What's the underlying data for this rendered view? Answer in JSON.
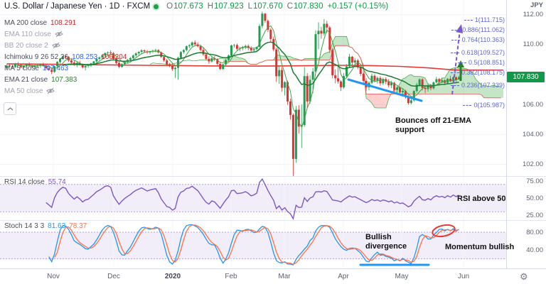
{
  "colors": {
    "up": "#1e9e4e",
    "down": "#e03131",
    "cloud_up": "rgba(76,175,80,0.32)",
    "cloud_down": "rgba(239,83,80,0.28)",
    "ma200": "#e53935",
    "ema21": "#1b7d33",
    "ma5": "#43a047",
    "span_a": "#4caf50",
    "span_b": "#ef5350",
    "rsi": "#7e57c2",
    "band_fill": "rgba(126,87,194,0.10)",
    "band_edge": "#b39ddb",
    "stoch_k": "#2196f3",
    "stoch_d": "#ff7043",
    "badge_bg": "#0f9948",
    "fib": "#5f67ce",
    "trendline": "#2196f3",
    "arrow_green": "#2e7d32",
    "arrow_purple": "#7e57c2",
    "ellipse_red": "#e53935"
  },
  "header": {
    "title": "U.S. Dollar / Japanese Yen · 1D · FXCM",
    "ohlc": {
      "o_label": "O",
      "o": "107.673",
      "h_label": "H",
      "h": "107.923",
      "l_label": "L",
      "l": "107.670",
      "c_label": "C",
      "c": "107.830",
      "change": "+0.157 (+0.15%)"
    }
  },
  "indicators": [
    {
      "label": "MA 200 close",
      "value": "108.291"
    },
    {
      "label": "EMA 110 close",
      "hidden": true
    },
    {
      "label": "BB 20 close 2",
      "hidden": true
    },
    {
      "label": "Ichimoku 9 26 52 26",
      "values": [
        {
          "text": "108.253"
        },
        {
          "text": "106.204"
        }
      ]
    },
    {
      "label": "MA 5 close",
      "value": "107.463"
    },
    {
      "label": "EMA 21 close",
      "value": "107.383"
    },
    {
      "label": "MA 50 close",
      "hidden": true
    }
  ],
  "rsi_legend": {
    "label": "RSI 14 close",
    "value": "55.74"
  },
  "stoch_legend": {
    "label": "Stoch 14 3 3",
    "k": "81.63",
    "d": "78.37"
  },
  "price_axis": {
    "unit": "JPY",
    "ticks": [
      "112.00",
      "110.00",
      "108.00",
      "106.00",
      "104.00",
      "102.00"
    ],
    "last": "107.830"
  },
  "rsi_axis": [
    "75.00",
    "50.00",
    "25.00"
  ],
  "stoch_axis": [
    "80.00",
    "40.00"
  ],
  "time_axis": [
    "Nov",
    "Dec",
    "2020",
    "Feb",
    "Mar",
    "Apr",
    "May",
    "Jun"
  ],
  "fib_levels": [
    {
      "label": "1(111.715)",
      "value": 111.715
    },
    {
      "label": "0.886(111.062)",
      "value": 111.062
    },
    {
      "label": "0.764(110.363)",
      "value": 110.363
    },
    {
      "label": "0.618(109.527)",
      "value": 109.527
    },
    {
      "label": "0.5(108.851)",
      "value": 108.851
    },
    {
      "label": "0.382(108.175)",
      "value": 108.175
    },
    {
      "label": "0.236(107.339)",
      "value": 107.339
    },
    {
      "label": "0(105.987)",
      "value": 105.987
    }
  ],
  "annotations": {
    "price_note": "Bounces off 21-EMA support",
    "rsi_note": "RSI above 50",
    "stoch_note1": "Bullish divergence",
    "stoch_note2": "Momentum bullish"
  },
  "chart_data": {
    "type": "candlestick",
    "symbol": "USD/JPY",
    "interval": "1D",
    "price_ylim": [
      101.4,
      112.8
    ],
    "rsi_band": [
      30,
      70
    ],
    "stoch_band": [
      20,
      80
    ],
    "candles": [
      [
        108.45,
        108.68,
        108.35,
        108.6
      ],
      [
        108.6,
        108.72,
        108.48,
        108.55
      ],
      [
        108.55,
        108.66,
        108.4,
        108.5
      ],
      [
        108.5,
        108.78,
        108.44,
        108.72
      ],
      [
        108.72,
        108.85,
        108.6,
        108.66
      ],
      [
        108.66,
        108.7,
        108.42,
        108.48
      ],
      [
        108.48,
        108.62,
        108.38,
        108.58
      ],
      [
        108.58,
        108.75,
        108.5,
        108.7
      ],
      [
        108.7,
        108.82,
        108.55,
        108.62
      ],
      [
        108.62,
        108.7,
        108.44,
        108.52
      ],
      [
        108.52,
        108.64,
        108.4,
        108.6
      ],
      [
        108.6,
        108.73,
        108.52,
        108.6
      ],
      [
        108.6,
        108.75,
        108.45,
        108.68
      ],
      [
        108.68,
        108.8,
        108.55,
        108.61
      ],
      [
        108.61,
        108.74,
        108.36,
        108.42
      ],
      [
        108.42,
        108.55,
        108.25,
        108.31
      ],
      [
        108.31,
        108.45,
        108.03,
        108.18
      ],
      [
        108.18,
        108.6,
        108.12,
        108.56
      ],
      [
        108.56,
        108.9,
        108.47,
        108.85
      ],
      [
        108.85,
        109.12,
        108.75,
        109.06
      ],
      [
        109.06,
        109.28,
        108.98,
        109.23
      ],
      [
        109.23,
        109.3,
        109.05,
        109.18
      ],
      [
        109.18,
        109.25,
        108.85,
        108.95
      ],
      [
        108.95,
        109.1,
        108.7,
        108.8
      ],
      [
        108.8,
        108.95,
        108.58,
        108.65
      ],
      [
        108.65,
        108.85,
        108.5,
        108.78
      ],
      [
        108.78,
        108.92,
        108.6,
        108.66
      ],
      [
        108.66,
        108.75,
        108.4,
        108.48
      ],
      [
        108.48,
        108.65,
        108.28,
        108.58
      ],
      [
        108.58,
        108.72,
        108.45,
        108.62
      ],
      [
        108.62,
        108.8,
        108.5,
        108.75
      ],
      [
        108.75,
        108.92,
        108.65,
        108.88
      ],
      [
        108.88,
        109.1,
        108.78,
        109.05
      ],
      [
        109.05,
        109.21,
        108.92,
        109.15
      ],
      [
        109.15,
        109.35,
        109.02,
        109.28
      ],
      [
        109.28,
        109.48,
        109.18,
        109.44
      ],
      [
        109.44,
        109.55,
        109.3,
        109.49
      ],
      [
        109.49,
        109.62,
        109.35,
        109.43
      ],
      [
        109.43,
        109.5,
        108.95,
        109.05
      ],
      [
        109.05,
        109.15,
        108.7,
        108.78
      ],
      [
        108.78,
        108.88,
        108.42,
        108.52
      ],
      [
        108.52,
        108.75,
        108.44,
        108.7
      ],
      [
        108.7,
        108.92,
        108.6,
        108.85
      ],
      [
        108.85,
        109.05,
        108.72,
        108.98
      ],
      [
        108.98,
        109.18,
        108.88,
        109.1
      ],
      [
        109.1,
        109.35,
        109.0,
        109.28
      ],
      [
        109.28,
        109.5,
        109.18,
        109.42
      ],
      [
        109.42,
        109.58,
        109.28,
        109.52
      ],
      [
        109.52,
        109.7,
        109.4,
        109.62
      ],
      [
        109.62,
        109.68,
        109.45,
        109.55
      ],
      [
        109.55,
        109.65,
        109.38,
        109.48
      ],
      [
        109.48,
        109.6,
        109.35,
        109.55
      ],
      [
        109.55,
        109.68,
        109.44,
        109.6
      ],
      [
        109.6,
        109.72,
        109.48,
        109.64
      ],
      [
        109.64,
        109.7,
        109.4,
        109.48
      ],
      [
        109.48,
        109.55,
        109.1,
        109.18
      ],
      [
        109.18,
        109.25,
        108.85,
        108.95
      ],
      [
        108.95,
        109.05,
        108.6,
        108.68
      ],
      [
        108.68,
        108.78,
        108.5,
        108.61
      ],
      [
        108.61,
        108.75,
        108.25,
        108.37
      ],
      [
        108.37,
        108.55,
        107.77,
        108.45
      ],
      [
        108.45,
        109.2,
        107.65,
        109.12
      ],
      [
        109.12,
        109.58,
        109.02,
        109.51
      ],
      [
        109.51,
        109.7,
        109.4,
        109.64
      ],
      [
        109.64,
        109.95,
        109.55,
        109.9
      ],
      [
        109.9,
        110.05,
        109.76,
        109.95
      ],
      [
        109.95,
        110.22,
        109.85,
        110.15
      ],
      [
        110.15,
        110.29,
        109.95,
        110.02
      ],
      [
        110.02,
        110.15,
        109.82,
        109.9
      ],
      [
        109.9,
        110.0,
        109.55,
        109.65
      ],
      [
        109.65,
        109.78,
        109.25,
        109.35
      ],
      [
        109.35,
        109.48,
        108.95,
        109.05
      ],
      [
        109.05,
        109.22,
        108.72,
        108.88
      ],
      [
        108.88,
        109.18,
        108.8,
        109.1
      ],
      [
        109.1,
        109.25,
        108.9,
        109.02
      ],
      [
        109.02,
        109.1,
        108.58,
        108.72
      ],
      [
        108.72,
        108.85,
        108.3,
        108.38
      ],
      [
        108.38,
        108.72,
        108.3,
        108.68
      ],
      [
        108.68,
        109.05,
        108.6,
        108.98
      ],
      [
        108.98,
        109.35,
        108.9,
        109.28
      ],
      [
        109.28,
        110.0,
        109.2,
        109.95
      ],
      [
        109.95,
        110.05,
        109.8,
        109.98
      ],
      [
        109.98,
        110.08,
        109.6,
        109.72
      ],
      [
        109.72,
        109.85,
        109.55,
        109.75
      ],
      [
        109.75,
        109.92,
        109.62,
        109.8
      ],
      [
        109.8,
        110.0,
        109.7,
        109.92
      ],
      [
        109.92,
        110.02,
        109.62,
        109.8
      ],
      [
        109.8,
        109.9,
        109.52,
        109.62
      ],
      [
        109.62,
        109.78,
        109.48,
        109.7
      ],
      [
        109.7,
        109.88,
        109.58,
        109.85
      ],
      [
        109.85,
        111.38,
        109.8,
        111.25
      ],
      [
        111.25,
        112.22,
        111.1,
        112.08
      ],
      [
        112.08,
        112.12,
        111.46,
        111.6
      ],
      [
        111.6,
        111.7,
        110.85,
        111.0
      ],
      [
        111.0,
        111.1,
        110.15,
        110.38
      ],
      [
        110.38,
        110.55,
        109.55,
        109.68
      ],
      [
        109.68,
        109.8,
        107.51,
        107.89
      ],
      [
        107.89,
        108.55,
        107.38,
        108.3
      ],
      [
        108.3,
        108.5,
        106.85,
        107.12
      ],
      [
        107.12,
        107.55,
        106.6,
        107.5
      ],
      [
        107.5,
        107.6,
        105.98,
        106.2
      ],
      [
        106.2,
        106.4,
        104.98,
        105.3
      ],
      [
        105.3,
        105.4,
        101.18,
        102.36
      ],
      [
        102.36,
        105.9,
        102.1,
        105.65
      ],
      [
        105.65,
        105.95,
        104.05,
        104.52
      ],
      [
        104.52,
        106.0,
        103.08,
        104.62
      ],
      [
        104.62,
        108.5,
        104.5,
        107.9
      ],
      [
        107.9,
        108.1,
        105.75,
        106.2
      ],
      [
        106.2,
        107.95,
        106.05,
        107.65
      ],
      [
        107.65,
        108.45,
        106.75,
        108.2
      ],
      [
        108.2,
        110.95,
        108.1,
        110.7
      ],
      [
        110.7,
        111.5,
        109.7,
        110.93
      ],
      [
        110.93,
        111.2,
        110.4,
        110.75
      ],
      [
        110.75,
        111.71,
        110.6,
        111.4
      ],
      [
        111.4,
        111.6,
        110.8,
        111.15
      ],
      [
        111.15,
        111.25,
        109.45,
        109.65
      ],
      [
        109.65,
        109.75,
        107.75,
        107.95
      ],
      [
        107.95,
        108.35,
        107.42,
        107.75
      ],
      [
        107.75,
        108.65,
        107.4,
        107.54
      ],
      [
        107.54,
        107.62,
        106.9,
        107.15
      ],
      [
        107.15,
        108.1,
        107.05,
        107.9
      ],
      [
        107.9,
        108.7,
        107.78,
        108.55
      ],
      [
        108.55,
        109.38,
        108.45,
        109.2
      ],
      [
        109.2,
        109.25,
        108.55,
        108.8
      ],
      [
        108.8,
        109.1,
        108.65,
        108.95
      ],
      [
        108.95,
        109.05,
        108.35,
        108.48
      ],
      [
        108.48,
        108.58,
        107.9,
        108.05
      ],
      [
        108.05,
        108.12,
        107.28,
        107.58
      ],
      [
        107.58,
        107.75,
        106.92,
        107.15
      ],
      [
        107.15,
        107.55,
        106.95,
        107.45
      ],
      [
        107.45,
        108.08,
        107.35,
        107.92
      ],
      [
        107.92,
        108.02,
        107.48,
        107.6
      ],
      [
        107.6,
        107.88,
        107.4,
        107.78
      ],
      [
        107.78,
        107.9,
        107.25,
        107.42
      ],
      [
        107.42,
        107.8,
        107.3,
        107.7
      ],
      [
        107.7,
        107.82,
        107.35,
        107.52
      ],
      [
        107.52,
        107.7,
        107.15,
        107.28
      ],
      [
        107.28,
        107.58,
        107.1,
        107.45
      ],
      [
        107.45,
        107.52,
        106.85,
        106.98
      ],
      [
        106.98,
        107.25,
        106.65,
        107.15
      ],
      [
        107.15,
        107.2,
        106.6,
        106.82
      ],
      [
        106.82,
        107.05,
        106.55,
        106.91
      ],
      [
        106.91,
        106.98,
        106.4,
        106.54
      ],
      [
        106.54,
        106.65,
        105.99,
        106.1
      ],
      [
        106.1,
        106.52,
        106.0,
        106.28
      ],
      [
        106.28,
        106.95,
        106.18,
        106.9
      ],
      [
        106.9,
        107.45,
        106.8,
        107.32
      ],
      [
        107.32,
        107.75,
        107.2,
        107.68
      ],
      [
        107.68,
        107.75,
        106.95,
        107.12
      ],
      [
        107.12,
        107.3,
        106.75,
        107.03
      ],
      [
        107.03,
        107.4,
        106.86,
        107.28
      ],
      [
        107.28,
        107.38,
        106.95,
        107.08
      ],
      [
        107.08,
        107.55,
        107.0,
        107.48
      ],
      [
        107.48,
        107.85,
        107.4,
        107.7
      ],
      [
        107.7,
        107.78,
        107.32,
        107.52
      ],
      [
        107.52,
        107.75,
        107.45,
        107.62
      ],
      [
        107.62,
        107.7,
        107.3,
        107.45
      ],
      [
        107.45,
        107.78,
        107.38,
        107.72
      ],
      [
        107.72,
        107.92,
        107.5,
        107.55
      ],
      [
        107.55,
        107.88,
        107.45,
        107.82
      ],
      [
        107.82,
        107.9,
        107.52,
        107.64
      ],
      [
        107.67,
        107.92,
        107.67,
        107.83
      ]
    ],
    "ma200": {
      "step": 10,
      "values": [
        108.72,
        108.7,
        108.68,
        108.66,
        108.64,
        108.62,
        108.6,
        108.58,
        108.57,
        108.57,
        108.58,
        108.6,
        108.62,
        108.6,
        108.55,
        108.45,
        108.3
      ]
    }
  }
}
